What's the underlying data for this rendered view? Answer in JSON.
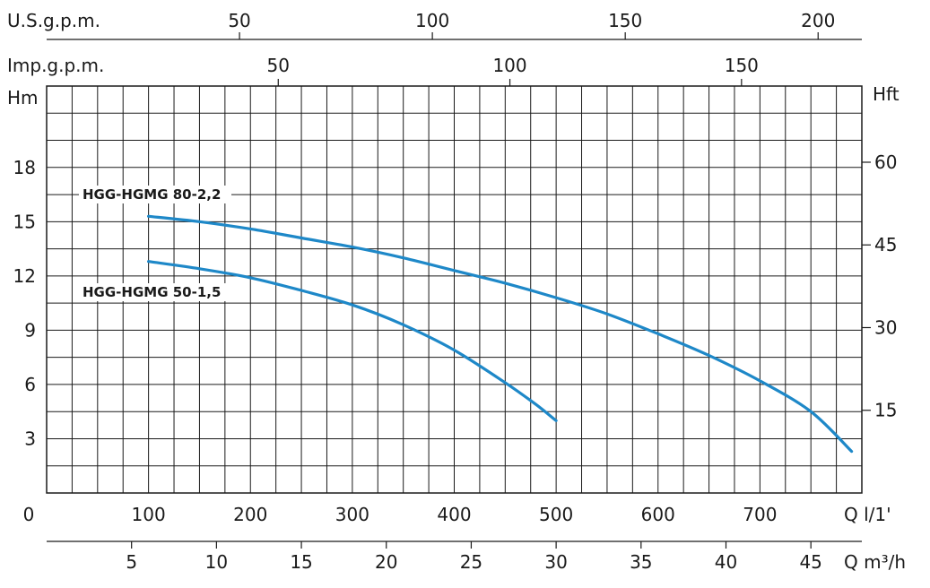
{
  "chart_data": {
    "type": "line",
    "title": "",
    "x_axes": {
      "lpm": {
        "label": "Q l/1'",
        "ticks": [
          0,
          100,
          200,
          300,
          400,
          500,
          600,
          700
        ],
        "range": [
          0,
          800
        ]
      },
      "m3h": {
        "label": "Q m³/h",
        "ticks": [
          5,
          10,
          15,
          20,
          25,
          30,
          35,
          40,
          45
        ],
        "range": [
          0,
          48
        ]
      },
      "usgpm": {
        "label": "U.S.g.p.m.",
        "ticks": [
          50,
          100,
          150,
          200
        ]
      },
      "impgpm": {
        "label": "Imp.g.p.m.",
        "ticks": [
          50,
          100,
          150
        ]
      }
    },
    "y_axes": {
      "left": {
        "label": "Hm",
        "ticks": [
          3,
          6,
          9,
          12,
          15,
          18
        ],
        "range": [
          0,
          22.5
        ]
      },
      "right": {
        "label": "Hft",
        "ticks": [
          15,
          30,
          45,
          60
        ]
      }
    },
    "grid": true,
    "series": [
      {
        "name": "HGG-HGMG 80-2,2",
        "color": "#1e88c8",
        "x": [
          100,
          150,
          200,
          250,
          300,
          350,
          400,
          450,
          500,
          550,
          600,
          650,
          700,
          750,
          790
        ],
        "y": [
          15.3,
          15.0,
          14.6,
          14.1,
          13.6,
          13.0,
          12.3,
          11.6,
          10.8,
          9.9,
          8.8,
          7.6,
          6.2,
          4.5,
          2.3
        ]
      },
      {
        "name": "HGG-HGMG 50-1,5",
        "color": "#1e88c8",
        "x": [
          100,
          150,
          200,
          250,
          300,
          350,
          400,
          450,
          480,
          500
        ],
        "y": [
          12.8,
          12.4,
          11.9,
          11.2,
          10.4,
          9.3,
          7.9,
          6.1,
          4.9,
          4.0
        ]
      }
    ]
  }
}
